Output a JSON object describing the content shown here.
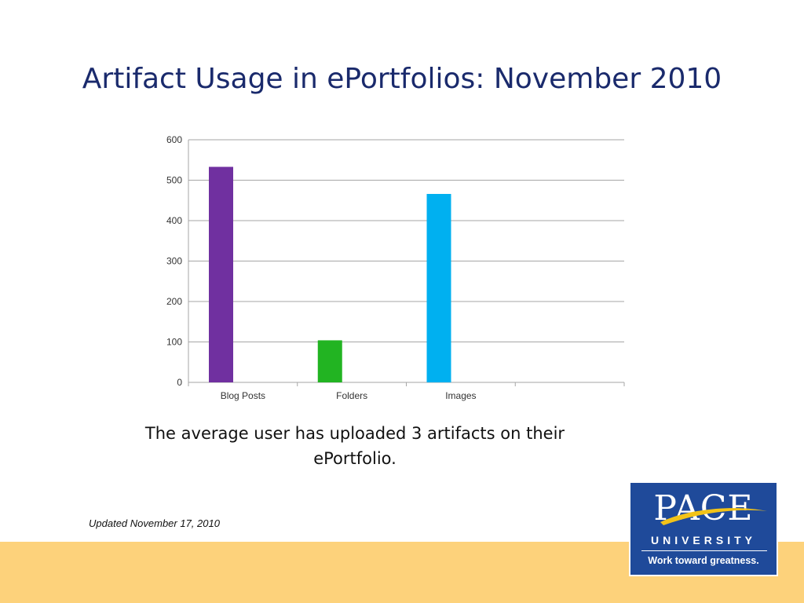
{
  "slide": {
    "title": "Artifact Usage in ePortfolios: November 2010",
    "caption": "The average user has uploaded 3 artifacts on their ePortfolio.",
    "updated": "Updated November 17, 2010"
  },
  "logo": {
    "name": "PACE",
    "subtitle": "UNIVERSITY",
    "tagline": "Work toward greatness.",
    "background": "#1f4a9a",
    "accent": "#f2c318"
  },
  "footer": {
    "color": "#fdd27b"
  },
  "chart_data": {
    "type": "bar",
    "title": "",
    "xlabel": "",
    "ylabel": "",
    "categories": [
      "Blog Posts",
      "Folders",
      "Images",
      ""
    ],
    "values": [
      533,
      104,
      466,
      null
    ],
    "colors": [
      "#7030a0",
      "#22b422",
      "#00b0f0"
    ],
    "ylim": [
      0,
      600
    ],
    "yticks": [
      0,
      100,
      200,
      300,
      400,
      500,
      600
    ],
    "grid": true,
    "legend": "none"
  }
}
